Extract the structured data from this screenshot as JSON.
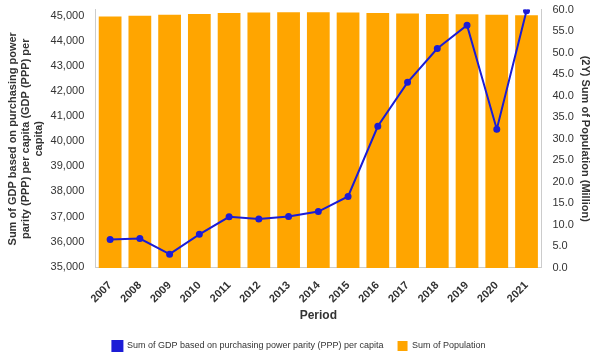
{
  "chart_data": {
    "type": "bar",
    "x_label": "Period",
    "y_label": [
      "Sum of GDP based on purchasing power",
      "parity (PPP) per capita (GDP (PPP) per",
      "capita)"
    ],
    "y2_label": "(2Y) Sum of Population (Million)",
    "categories": [
      "2007",
      "2008",
      "2009",
      "2010",
      "2011",
      "2012",
      "2013",
      "2014",
      "2015",
      "2016",
      "2017",
      "2018",
      "2019",
      "2020",
      "2021"
    ],
    "series": [
      {
        "name": "Sum of GDP based on purchasing power parity (PPP) per capita",
        "type": "line",
        "color": "#1c1cd6",
        "marker": "circle",
        "values": [
          36080,
          36120,
          35500,
          36290,
          36990,
          36900,
          37000,
          37200,
          37800,
          40600,
          42350,
          43700,
          44630,
          40480,
          45200
        ]
      },
      {
        "name": "Sum of Population",
        "type": "bar",
        "axis": "y2",
        "color": "#FFA500",
        "values": [
          58.4,
          58.6,
          58.8,
          59.0,
          59.2,
          59.3,
          59.4,
          59.4,
          59.3,
          59.2,
          59.1,
          59.0,
          58.9,
          58.8,
          58.7
        ]
      }
    ],
    "ylim": [
      34950,
      45250
    ],
    "yticks": [
      {
        "value": 35000,
        "label": "35,000"
      },
      {
        "value": 36000,
        "label": "36,000"
      },
      {
        "value": 37000,
        "label": "37,000"
      },
      {
        "value": 38000,
        "label": "38,000"
      },
      {
        "value": 39000,
        "label": "39,000"
      },
      {
        "value": 40000,
        "label": "40,000"
      },
      {
        "value": 41000,
        "label": "41,000"
      },
      {
        "value": 42000,
        "label": "42,000"
      },
      {
        "value": 43000,
        "label": "43,000"
      },
      {
        "value": 44000,
        "label": "44,000"
      },
      {
        "value": 45000,
        "label": "45,000"
      }
    ],
    "y2lim": [
      0,
      60
    ],
    "y2ticks": [
      {
        "value": 0,
        "label": "0.0"
      },
      {
        "value": 5,
        "label": "5.0"
      },
      {
        "value": 10,
        "label": "10.0"
      },
      {
        "value": 15,
        "label": "15.0"
      },
      {
        "value": 20,
        "label": "20.0"
      },
      {
        "value": 25,
        "label": "25.0"
      },
      {
        "value": 30,
        "label": "30.0"
      },
      {
        "value": 35,
        "label": "35.0"
      },
      {
        "value": 40,
        "label": "40.0"
      },
      {
        "value": 45,
        "label": "45.0"
      },
      {
        "value": 50,
        "label": "50.0"
      },
      {
        "value": 55,
        "label": "55.0"
      },
      {
        "value": 60,
        "label": "60.0"
      }
    ],
    "grid": false,
    "legend": "bottom"
  }
}
